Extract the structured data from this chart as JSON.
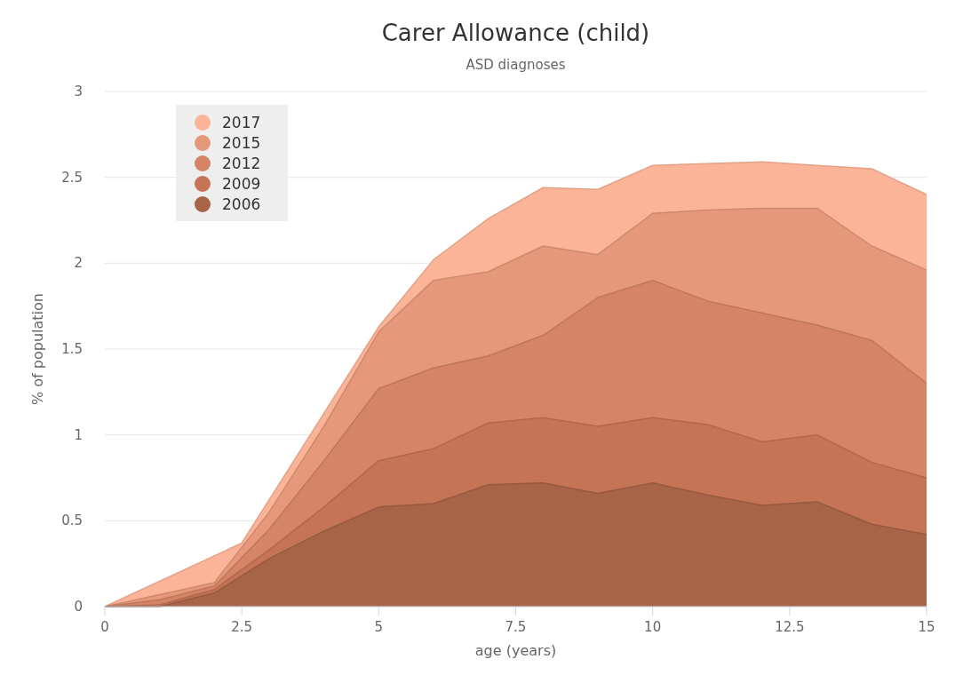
{
  "chart_data": {
    "type": "area",
    "title": "Carer Allowance (child)",
    "subtitle": "ASD diagnoses",
    "xlabel": "age (years)",
    "ylabel": "% of population",
    "xlim": [
      0,
      15
    ],
    "xticks": [
      0,
      2.5,
      5,
      7.5,
      10,
      12.5,
      15
    ],
    "ylim": [
      0,
      3
    ],
    "yticks": [
      0,
      0.5,
      1,
      1.5,
      2,
      2.5,
      3
    ],
    "grid": "y",
    "legend": "top left",
    "series": [
      {
        "name": "2017",
        "color": "#fbb497",
        "x": [
          0,
          2.5,
          5,
          6,
          7,
          8,
          9,
          10,
          11,
          12,
          13,
          14,
          15
        ],
        "values": [
          0,
          0.37,
          1.63,
          2.02,
          2.26,
          2.44,
          2.43,
          2.57,
          2.58,
          2.59,
          2.57,
          2.55,
          2.4
        ]
      },
      {
        "name": "2015",
        "color": "#e6987a",
        "x": [
          0,
          1,
          2,
          3,
          4,
          5,
          6,
          7,
          8,
          9,
          10,
          11,
          12,
          13,
          14,
          15
        ],
        "values": [
          0,
          0.07,
          0.14,
          0.55,
          1.05,
          1.6,
          1.9,
          1.95,
          2.1,
          2.05,
          2.29,
          2.31,
          2.32,
          2.32,
          2.1,
          1.96
        ]
      },
      {
        "name": "2012",
        "color": "#d58466",
        "x": [
          0,
          1,
          2,
          3,
          4,
          5,
          6,
          7,
          8,
          9,
          10,
          11,
          12,
          13,
          14,
          15
        ],
        "values": [
          0,
          0.04,
          0.12,
          0.45,
          0.85,
          1.27,
          1.39,
          1.46,
          1.58,
          1.8,
          1.9,
          1.78,
          1.71,
          1.64,
          1.55,
          1.3
        ]
      },
      {
        "name": "2009",
        "color": "#c57455",
        "x": [
          0,
          1,
          2,
          3,
          4,
          5,
          6,
          7,
          8,
          9,
          10,
          11,
          12,
          13,
          14,
          15
        ],
        "values": [
          0,
          0.01,
          0.1,
          0.33,
          0.58,
          0.85,
          0.92,
          1.07,
          1.1,
          1.05,
          1.1,
          1.06,
          0.96,
          1.0,
          0.84,
          0.75
        ]
      },
      {
        "name": "2006",
        "color": "#a86446",
        "x": [
          0,
          1,
          2,
          3,
          4,
          5,
          6,
          7,
          8,
          9,
          10,
          11,
          12,
          13,
          14,
          15
        ],
        "values": [
          0,
          0,
          0.08,
          0.28,
          0.44,
          0.58,
          0.6,
          0.71,
          0.72,
          0.66,
          0.72,
          0.65,
          0.59,
          0.61,
          0.48,
          0.42
        ]
      }
    ]
  }
}
